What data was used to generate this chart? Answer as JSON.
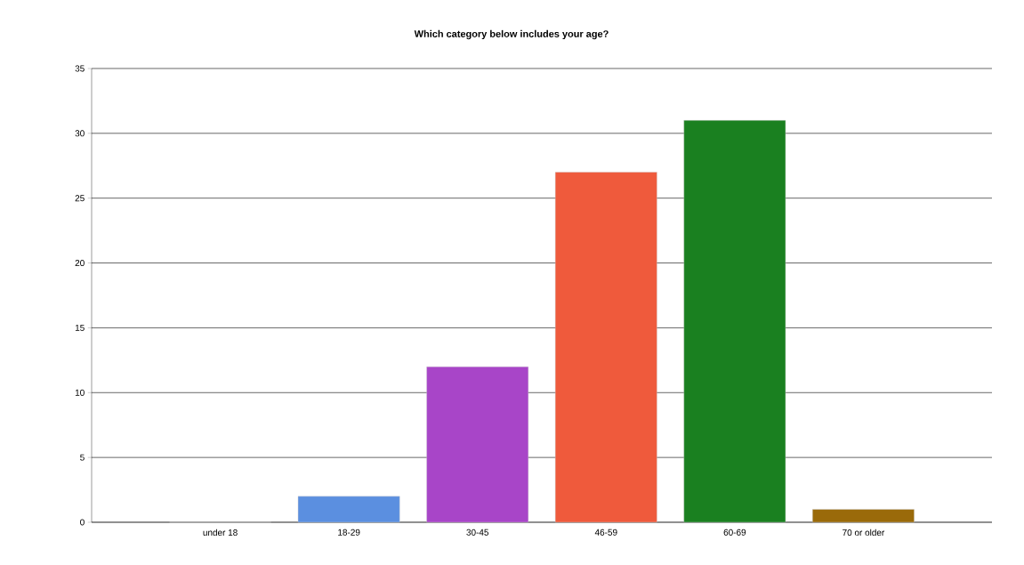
{
  "chart_data": {
    "type": "bar",
    "title": "Which category below includes your age?",
    "categories": [
      "under 18",
      "18-29",
      "30-45",
      "46-59",
      "60-69",
      "70 or older"
    ],
    "values": [
      0,
      2,
      12,
      27,
      31,
      1
    ],
    "colors": [
      "#5b8fe0",
      "#5b8fe0",
      "#a845c8",
      "#ef5a3c",
      "#1a8020",
      "#9a6a0a"
    ],
    "ylim": [
      0,
      35
    ],
    "yticks": [
      0,
      5,
      10,
      15,
      20,
      25,
      30,
      35
    ],
    "grid": "y"
  }
}
